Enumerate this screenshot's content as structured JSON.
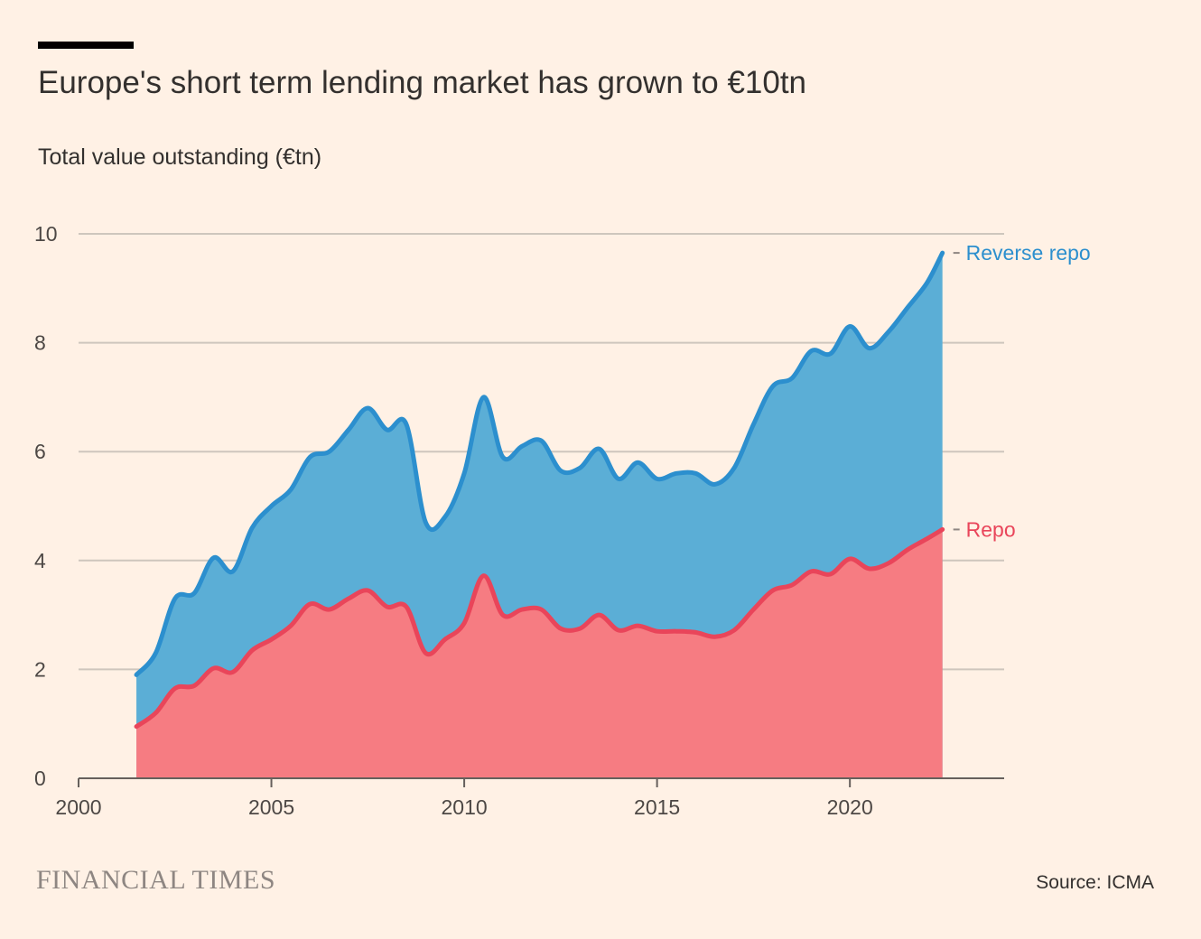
{
  "header": {
    "title": "Europe's short term lending market has grown to €10tn",
    "subtitle": "Total value outstanding (€tn)"
  },
  "footer": {
    "brand": "FINANCIAL TIMES",
    "source": "Source: ICMA"
  },
  "colors": {
    "background": "#FFF1E5",
    "reverse_repo_line": "#2C8FCE",
    "reverse_repo_fill": "#5BAED6",
    "repo_line": "#E9455A",
    "repo_fill": "#F67C82",
    "grid": "#CEC6BD"
  },
  "chart_data": {
    "type": "area",
    "title": "Europe's short term lending market has grown to €10tn",
    "ylabel": "Total value outstanding (€tn)",
    "xlabel": "",
    "xlim": [
      2000,
      2024
    ],
    "ylim": [
      0,
      10
    ],
    "x_ticks": [
      2000,
      2005,
      2010,
      2015,
      2020
    ],
    "x_tick_labels": [
      "2000",
      "2005",
      "2010",
      "2015",
      "2020"
    ],
    "y_ticks": [
      0,
      2,
      4,
      6,
      8,
      10
    ],
    "y_tick_labels": [
      "0",
      "2",
      "4",
      "6",
      "8",
      "10"
    ],
    "grid": true,
    "x": [
      2001.5,
      2002.0,
      2002.5,
      2003.0,
      2003.5,
      2004.0,
      2004.5,
      2005.0,
      2005.5,
      2006.0,
      2006.5,
      2007.0,
      2007.5,
      2008.0,
      2008.5,
      2009.0,
      2009.5,
      2010.0,
      2010.5,
      2011.0,
      2011.5,
      2012.0,
      2012.5,
      2013.0,
      2013.5,
      2014.0,
      2014.5,
      2015.0,
      2015.5,
      2016.0,
      2016.5,
      2017.0,
      2017.5,
      2018.0,
      2018.5,
      2019.0,
      2019.5,
      2020.0,
      2020.5,
      2021.0,
      2021.5,
      2022.0,
      2022.4
    ],
    "series": [
      {
        "name": "Reverse repo",
        "label": "Reverse repo",
        "values": [
          1.9,
          2.3,
          3.3,
          3.4,
          4.05,
          3.8,
          4.6,
          5.0,
          5.3,
          5.9,
          6.0,
          6.4,
          6.8,
          6.4,
          6.5,
          4.7,
          4.8,
          5.6,
          7.0,
          5.9,
          6.1,
          6.2,
          5.65,
          5.7,
          6.05,
          5.5,
          5.8,
          5.5,
          5.6,
          5.6,
          5.4,
          5.7,
          6.5,
          7.2,
          7.35,
          7.85,
          7.8,
          8.3,
          7.9,
          8.2,
          8.65,
          9.1,
          9.65
        ]
      },
      {
        "name": "Repo",
        "label": "Repo",
        "values": [
          0.95,
          1.2,
          1.65,
          1.7,
          2.02,
          1.95,
          2.35,
          2.55,
          2.8,
          3.2,
          3.1,
          3.3,
          3.45,
          3.15,
          3.15,
          2.3,
          2.55,
          2.85,
          3.72,
          3.0,
          3.1,
          3.1,
          2.75,
          2.75,
          3.0,
          2.72,
          2.8,
          2.7,
          2.7,
          2.68,
          2.6,
          2.72,
          3.1,
          3.45,
          3.55,
          3.8,
          3.75,
          4.03,
          3.85,
          3.95,
          4.2,
          4.4,
          4.57
        ]
      }
    ]
  }
}
